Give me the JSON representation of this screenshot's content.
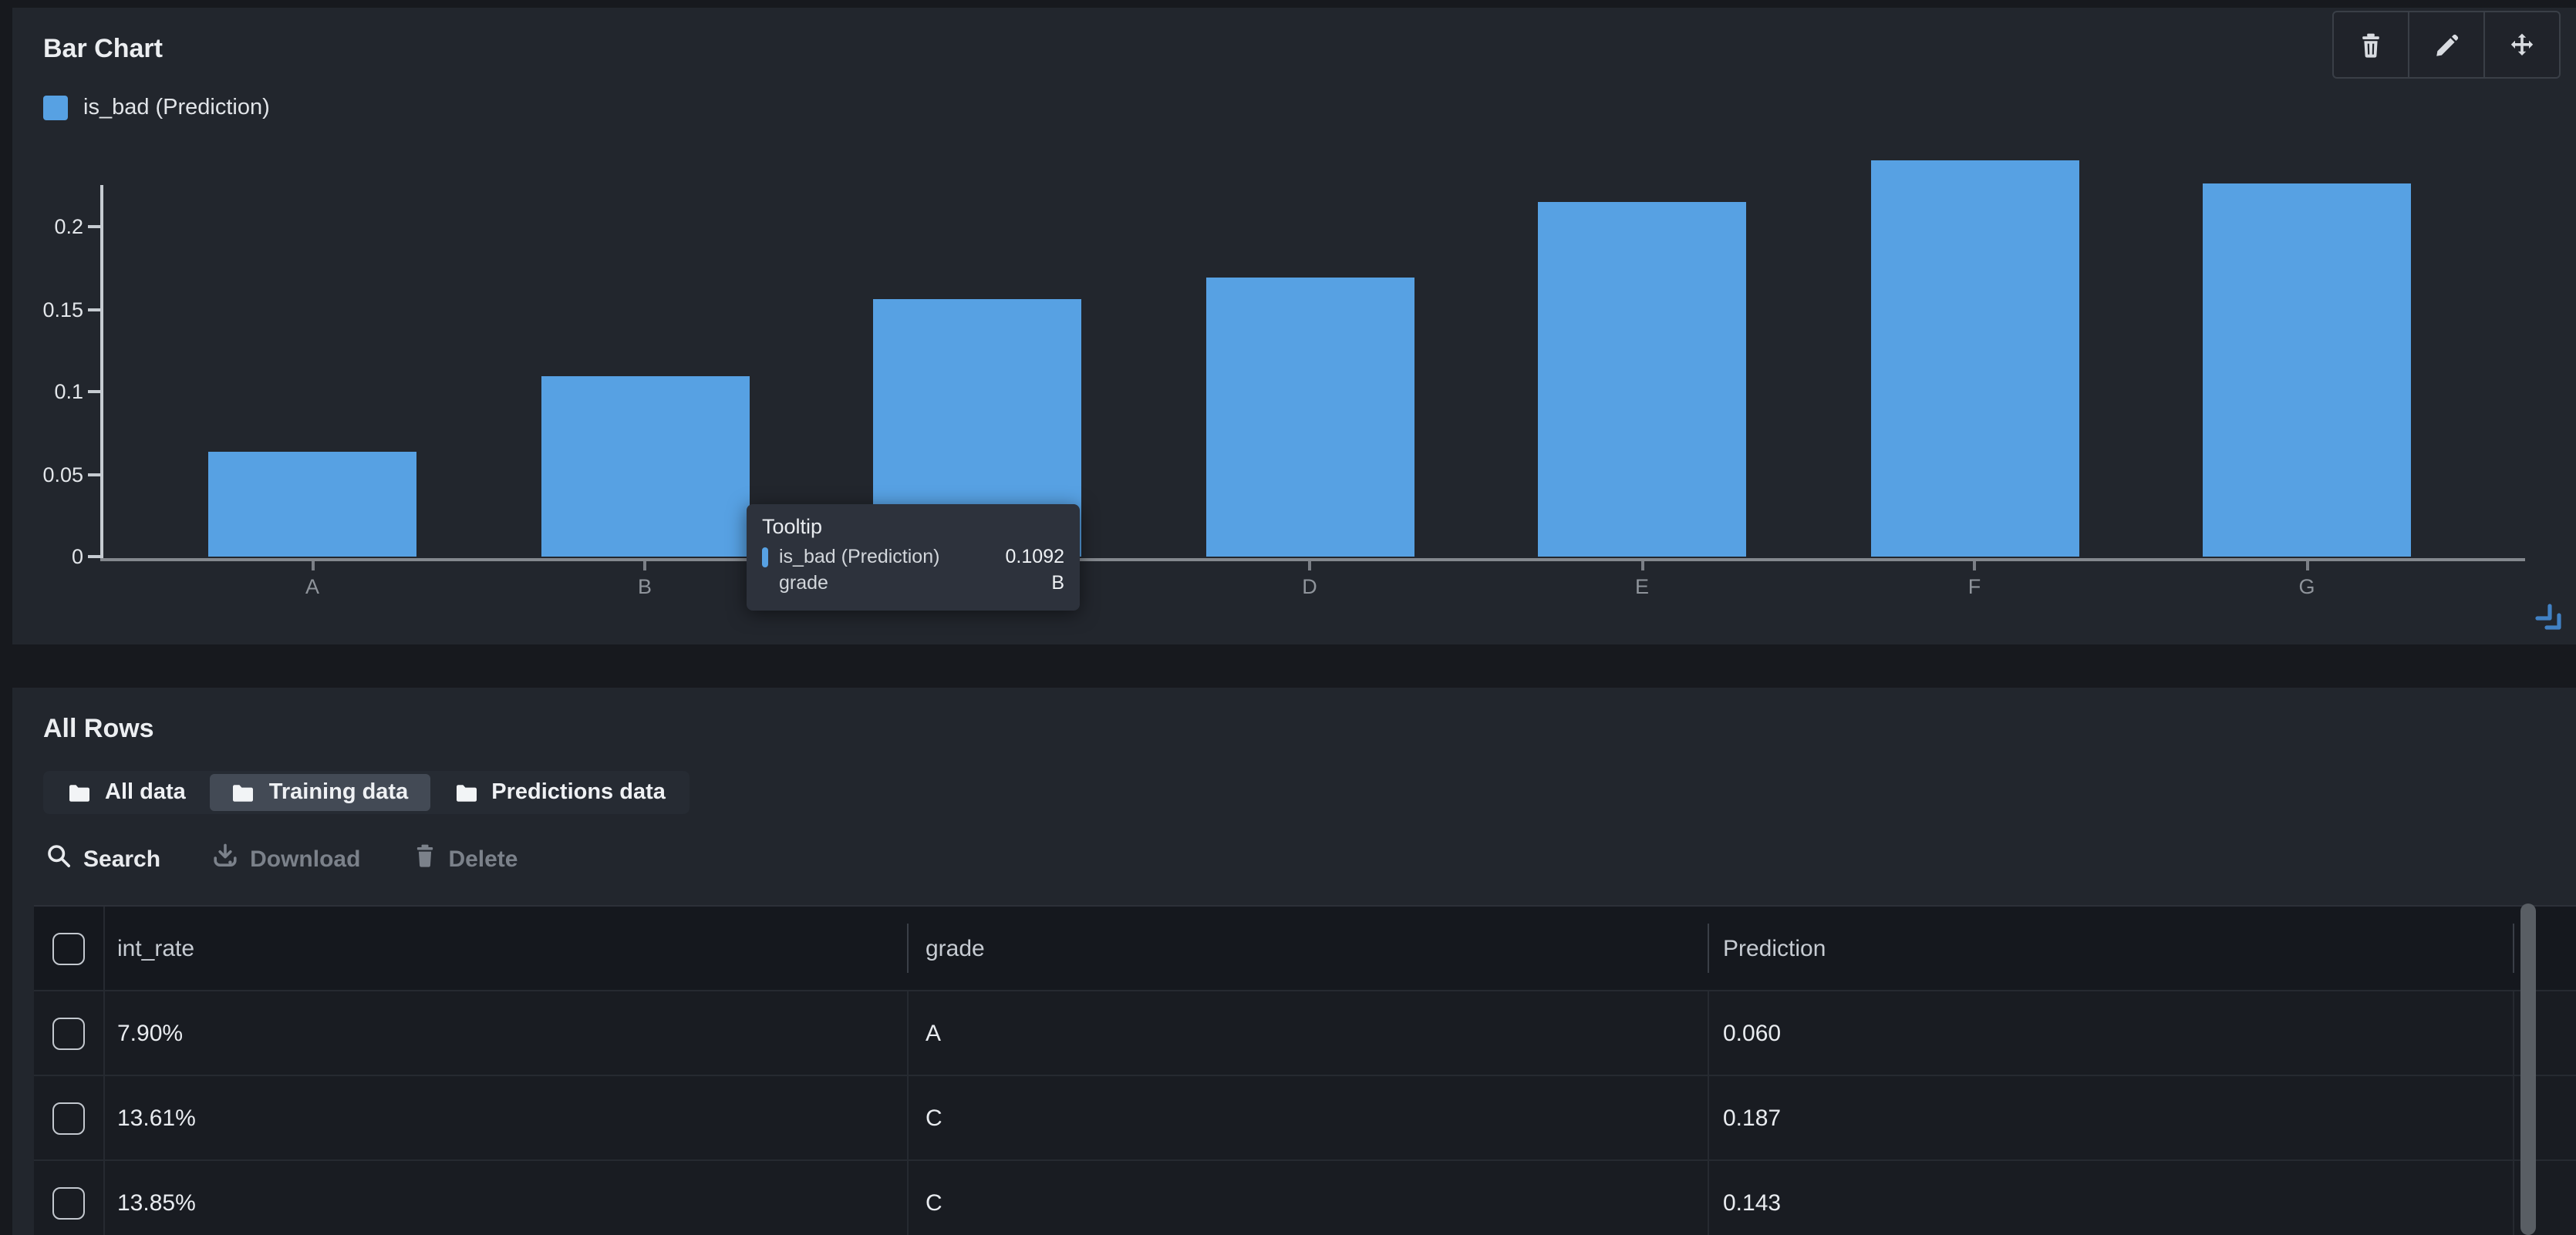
{
  "chart_panel": {
    "title": "Bar Chart",
    "legend": {
      "label": "is_bad (Prediction)",
      "color": "#57a1e3"
    },
    "actions": [
      {
        "name": "delete-chart",
        "icon": "trash-icon"
      },
      {
        "name": "edit-chart",
        "icon": "pencil-icon"
      },
      {
        "name": "move-chart",
        "icon": "move-icon"
      }
    ],
    "tooltip": {
      "title": "Tooltip",
      "series_label": "is_bad (Prediction)",
      "series_value": "0.1092",
      "category_label": "grade",
      "category_value": "B"
    }
  },
  "chart_data": {
    "type": "bar",
    "title": "Bar Chart",
    "categories": [
      "A",
      "B",
      "C",
      "D",
      "E",
      "F",
      "G"
    ],
    "series": [
      {
        "name": "is_bad (Prediction)",
        "values": [
          0.064,
          0.109,
          0.156,
          0.169,
          0.215,
          0.24,
          0.226
        ]
      }
    ],
    "xlabel": "grade",
    "ylabel": "",
    "yticks": [
      0,
      0.05,
      0.1,
      0.15,
      0.2
    ],
    "ylim": [
      0,
      0.226
    ],
    "grid": false,
    "legend_position": "top-left",
    "bar_color": "#57a1e3",
    "hovered_category": "B",
    "hovered_value": "0.1092"
  },
  "table_panel": {
    "title": "All Rows",
    "tabs": [
      {
        "label": "All data",
        "active": false
      },
      {
        "label": "Training data",
        "active": true
      },
      {
        "label": "Predictions data",
        "active": false
      }
    ],
    "toolbar": [
      {
        "label": "Search",
        "icon": "search-icon",
        "enabled": true
      },
      {
        "label": "Download",
        "icon": "download-icon",
        "enabled": false
      },
      {
        "label": "Delete",
        "icon": "trash-icon",
        "enabled": false
      }
    ],
    "table": {
      "columns": [
        "int_rate",
        "grade",
        "Prediction"
      ],
      "rows": [
        [
          "7.90%",
          "A",
          "0.060"
        ],
        [
          "13.61%",
          "C",
          "0.187"
        ],
        [
          "13.85%",
          "C",
          "0.143"
        ]
      ]
    }
  }
}
